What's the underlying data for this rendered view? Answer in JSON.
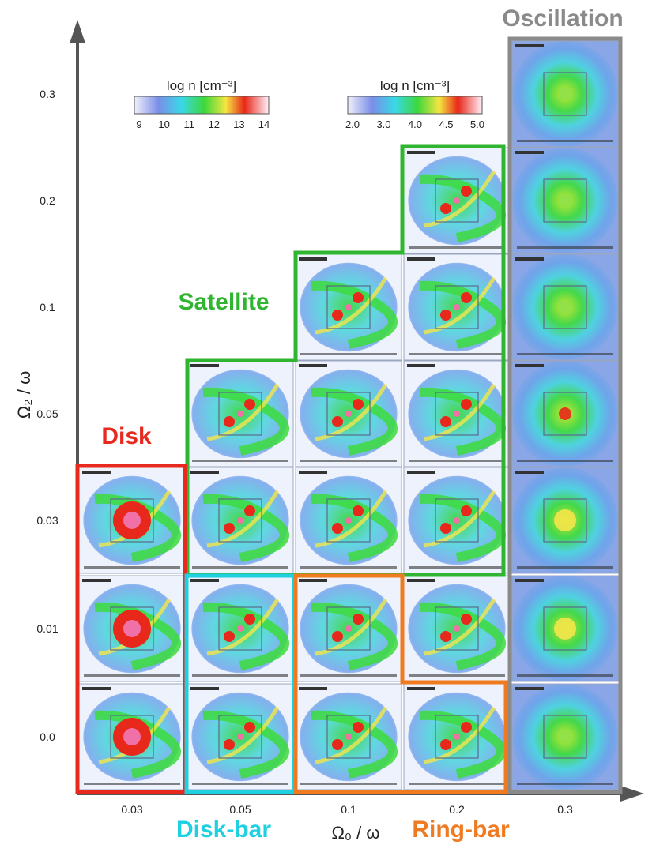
{
  "figure": {
    "x_axis_label": "Ω₀ / ω",
    "y_axis_label": "Ω₂ / ω",
    "x_ticks": [
      "0.03",
      "0.05",
      "0.1",
      "0.2",
      "0.3"
    ],
    "y_ticks": [
      "0.3",
      "0.2",
      "0.1",
      "0.05",
      "0.03",
      "0.01",
      "0.0"
    ],
    "colorbar_left": {
      "label": "log n [cm⁻³]",
      "ticks": [
        "9",
        "10",
        "11",
        "12",
        "13",
        "14"
      ]
    },
    "colorbar_right": {
      "label": "log n [cm⁻³]",
      "ticks": [
        "2.0",
        "3.0",
        "4.0",
        "4.5",
        "5.0"
      ]
    },
    "regions": {
      "oscillation": {
        "label": "Oscillation",
        "color": "#8a8a8a"
      },
      "satellite": {
        "label": "Satellite",
        "color": "#2fb52f"
      },
      "disk": {
        "label": "Disk",
        "color": "#e82a1e"
      },
      "disk_bar": {
        "label": "Disk-bar",
        "color": "#1fd0e0"
      },
      "ring_bar": {
        "label": "Ring-bar",
        "color": "#f07a20"
      }
    },
    "panel_types": [
      [
        "",
        "",
        "",
        "",
        "oscillation"
      ],
      [
        "",
        "",
        "",
        "satellite",
        "oscillation"
      ],
      [
        "",
        "",
        "satellite",
        "satellite",
        "oscillation"
      ],
      [
        "",
        "satellite",
        "satellite",
        "satellite",
        "oscillation"
      ],
      [
        "disk",
        "satellite",
        "satellite",
        "satellite",
        "oscillation"
      ],
      [
        "disk",
        "diskbar",
        "ringbar",
        "ringbar",
        "oscillation"
      ],
      [
        "disk",
        "diskbar",
        "ringbar",
        "ringbar",
        "oscillation"
      ]
    ],
    "colors": {
      "axis": "#444444",
      "panel_bg": "#8da7e8",
      "cloud_cyan": "#5fe0e8",
      "cloud_green": "#3cdc3c",
      "core_yellow": "#f2e64a",
      "core_red": "#e8281a",
      "core_pink": "#f070a8"
    }
  }
}
